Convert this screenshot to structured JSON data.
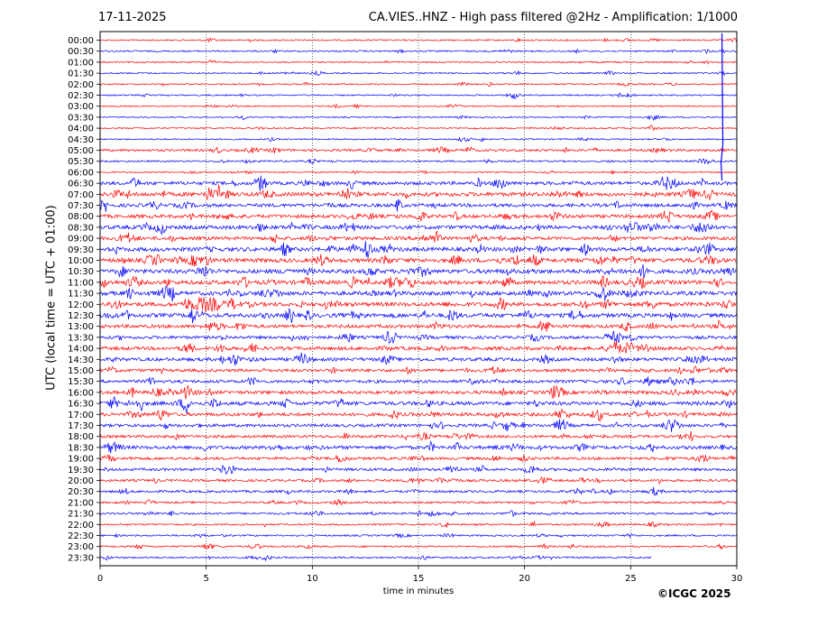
{
  "header": {
    "date": "17-11-2025",
    "title": "CA.VIES..HNZ - High pass filtered @2Hz - Amplification: 1/1000"
  },
  "footer": {
    "copyright": "©ICGC 2025"
  },
  "colors": {
    "trace_a": "#ff0000",
    "trace_b": "#0000ff",
    "grid": "#000000"
  },
  "chart_data": {
    "type": "line",
    "title": "CA.VIES..HNZ - High pass filtered @2Hz - Amplification: 1/1000",
    "xlabel": "time in minutes",
    "ylabel": "UTC (local time = UTC + 01:00)",
    "xlim": [
      0,
      30
    ],
    "x_ticks": [
      0,
      5,
      10,
      15,
      20,
      25,
      30
    ],
    "grid": "vertical dotted",
    "row_labels": [
      "00:00",
      "00:30",
      "01:00",
      "01:30",
      "02:00",
      "02:30",
      "03:00",
      "03:30",
      "04:00",
      "04:30",
      "05:00",
      "05:30",
      "06:00",
      "06:30",
      "07:00",
      "07:30",
      "08:00",
      "08:30",
      "09:00",
      "09:30",
      "10:00",
      "10:30",
      "11:00",
      "11:30",
      "12:00",
      "12:30",
      "13:00",
      "13:30",
      "14:00",
      "14:30",
      "15:00",
      "15:30",
      "16:00",
      "16:30",
      "17:00",
      "17:30",
      "18:00",
      "18:30",
      "19:00",
      "19:30",
      "20:00",
      "20:30",
      "21:00",
      "21:30",
      "22:00",
      "22:30",
      "23:00",
      "23:30"
    ],
    "row_colors": [
      "red",
      "blue"
    ],
    "last_row_end_minute": 26.0,
    "activity_level": [
      0.2,
      0.25,
      0.2,
      0.2,
      0.2,
      0.2,
      0.15,
      0.15,
      0.2,
      0.2,
      0.5,
      0.3,
      0.2,
      0.8,
      1.0,
      0.8,
      0.8,
      0.9,
      0.8,
      1.0,
      1.0,
      1.0,
      1.0,
      1.0,
      1.0,
      1.0,
      0.8,
      0.7,
      0.8,
      0.8,
      0.7,
      0.7,
      0.8,
      0.9,
      0.8,
      0.7,
      0.6,
      0.8,
      0.6,
      0.6,
      0.5,
      0.5,
      0.4,
      0.4,
      0.3,
      0.3,
      0.3,
      0.3
    ]
  }
}
